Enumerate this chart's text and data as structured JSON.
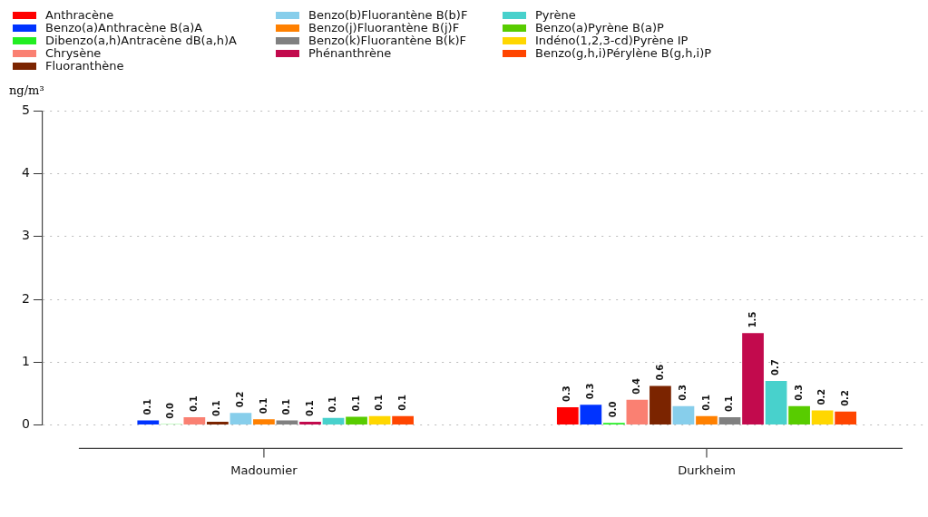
{
  "chart_data": {
    "type": "bar",
    "ylabel": "ng/m³",
    "categories": [
      "Madoumier",
      "Durkheim"
    ],
    "series": [
      {
        "name": "Anthracène",
        "color": "#ff0000",
        "values": [
          null,
          0.28
        ],
        "value_labels": [
          null,
          "0.3"
        ]
      },
      {
        "name": "Benzo(a)Anthracène B(a)A",
        "color": "#0033ff",
        "values": [
          0.07,
          0.32
        ],
        "value_labels": [
          "0.1",
          "0.3"
        ]
      },
      {
        "name": "Dibenzo(a,h)Antracène dB(a,h)A",
        "color": "#22ee22",
        "values": [
          0.01,
          0.03
        ],
        "value_labels": [
          "0.0",
          "0.0"
        ]
      },
      {
        "name": "Chrysène",
        "color": "#fa8072",
        "values": [
          0.12,
          0.4
        ],
        "value_labels": [
          "0.1",
          "0.4"
        ]
      },
      {
        "name": "Fluoranthène",
        "color": "#7b2400",
        "values": [
          0.05,
          0.62
        ],
        "value_labels": [
          "0.1",
          "0.6"
        ]
      },
      {
        "name": "Benzo(b)Fluorantène B(b)F",
        "color": "#87ceeb",
        "values": [
          0.19,
          0.3
        ],
        "value_labels": [
          "0.2",
          "0.3"
        ]
      },
      {
        "name": "Benzo(j)Fluorantène B(j)F",
        "color": "#ff8000",
        "values": [
          0.09,
          0.14
        ],
        "value_labels": [
          "0.1",
          "0.1"
        ]
      },
      {
        "name": "Benzo(k)Fluorantène B(k)F",
        "color": "#808080",
        "values": [
          0.07,
          0.12
        ],
        "value_labels": [
          "0.1",
          "0.1"
        ]
      },
      {
        "name": "Phénanthrène",
        "color": "#c20a4d",
        "values": [
          0.05,
          1.46
        ],
        "value_labels": [
          "0.1",
          "1.5"
        ]
      },
      {
        "name": "Pyrène",
        "color": "#48d1cc",
        "values": [
          0.11,
          0.7
        ],
        "value_labels": [
          "0.1",
          "0.7"
        ]
      },
      {
        "name": "Benzo(a)Pyrène B(a)P",
        "color": "#58cc00",
        "values": [
          0.13,
          0.3
        ],
        "value_labels": [
          "0.1",
          "0.3"
        ]
      },
      {
        "name": "Indéno(1,2,3-cd)Pyrène IP",
        "color": "#ffd700",
        "values": [
          0.14,
          0.23
        ],
        "value_labels": [
          "0.1",
          "0.2"
        ]
      },
      {
        "name": "Benzo(g,h,i)Pérylène B(g,h,i)P",
        "color": "#ff4500",
        "values": [
          0.14,
          0.21
        ],
        "value_labels": [
          "0.1",
          "0.2"
        ]
      }
    ],
    "ylim": [
      0,
      5
    ],
    "yticks": [
      0,
      1,
      2,
      3,
      4,
      5
    ],
    "grid": "y",
    "legend": "top left"
  }
}
